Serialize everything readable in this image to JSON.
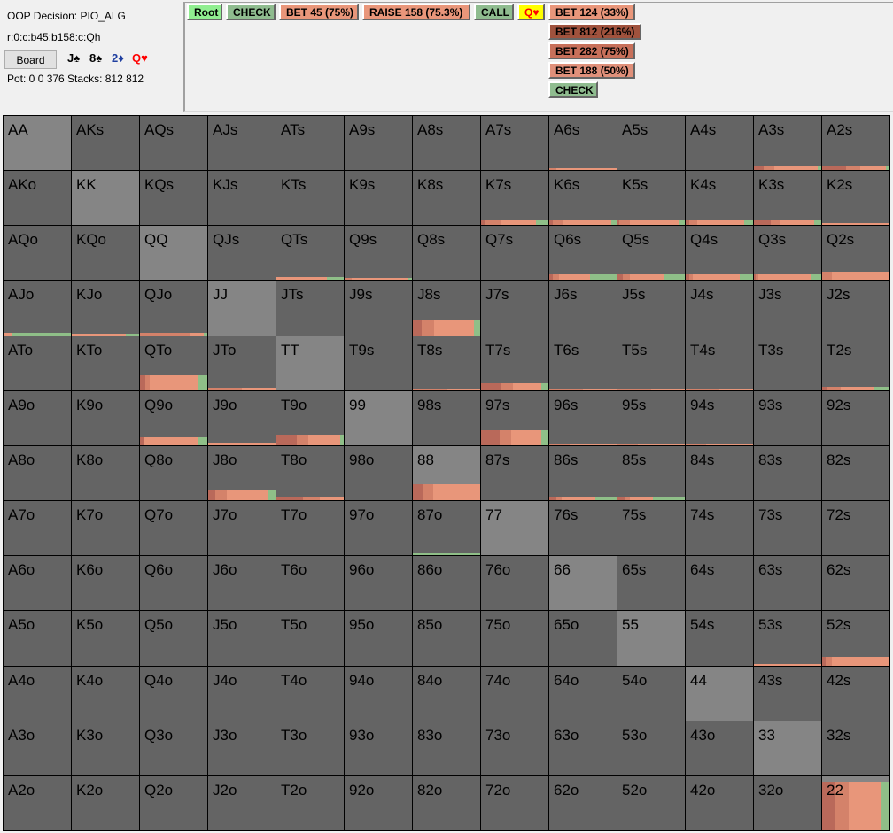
{
  "info": {
    "decision": "OOP Decision:  PIO_ALG",
    "line": "r:0:c:b45:b158:c:Qh",
    "board_button": "Board",
    "pot_stacks": "Pot: 0 0 376 Stacks: 812 812"
  },
  "board_cards": [
    {
      "text": "J♠",
      "color": "#000000"
    },
    {
      "text": "8♠",
      "color": "#000000"
    },
    {
      "text": "2♦",
      "color": "#1f3fa0"
    },
    {
      "text": "Q♥",
      "color": "#ff0000"
    }
  ],
  "nav": {
    "root": "Root",
    "check": "CHECK",
    "bet45": "BET 45 (75%)",
    "raise158": "RAISE 158 (75.3%)",
    "call": "CALL",
    "turn_card": "Q♥",
    "bet124": "BET 124 (33%)"
  },
  "actions": [
    {
      "label": "BET 812 (216%)",
      "color": "#a0523d"
    },
    {
      "label": "BET 282 (75%)",
      "color": "#c8705a"
    },
    {
      "label": "BET 188 (50%)",
      "color": "#e0907a"
    },
    {
      "label": "CHECK",
      "color": "#8fbc8f"
    }
  ],
  "colors": {
    "root": "#90ee90",
    "check": "#8fbc8f",
    "bet": "#e9967a",
    "turn_bg": "#ffff00",
    "seg_bet812": "#b9695a",
    "seg_bet282": "#d4826a",
    "seg_bet188": "#e8967a",
    "seg_check": "#8fbf88"
  },
  "hands": [
    [
      "AA",
      "AKs",
      "AQs",
      "AJs",
      "ATs",
      "A9s",
      "A8s",
      "A7s",
      "A6s",
      "A5s",
      "A4s",
      "A3s",
      "A2s"
    ],
    [
      "AKo",
      "KK",
      "KQs",
      "KJs",
      "KTs",
      "K9s",
      "K8s",
      "K7s",
      "K6s",
      "K5s",
      "K4s",
      "K3s",
      "K2s"
    ],
    [
      "AQo",
      "KQo",
      "QQ",
      "QJs",
      "QTs",
      "Q9s",
      "Q8s",
      "Q7s",
      "Q6s",
      "Q5s",
      "Q4s",
      "Q3s",
      "Q2s"
    ],
    [
      "AJo",
      "KJo",
      "QJo",
      "JJ",
      "JTs",
      "J9s",
      "J8s",
      "J7s",
      "J6s",
      "J5s",
      "J4s",
      "J3s",
      "J2s"
    ],
    [
      "ATo",
      "KTo",
      "QTo",
      "JTo",
      "TT",
      "T9s",
      "T8s",
      "T7s",
      "T6s",
      "T5s",
      "T4s",
      "T3s",
      "T2s"
    ],
    [
      "A9o",
      "K9o",
      "Q9o",
      "J9o",
      "T9o",
      "99",
      "98s",
      "97s",
      "96s",
      "95s",
      "94s",
      "93s",
      "92s"
    ],
    [
      "A8o",
      "K8o",
      "Q8o",
      "J8o",
      "T8o",
      "98o",
      "88",
      "87s",
      "86s",
      "85s",
      "84s",
      "83s",
      "82s"
    ],
    [
      "A7o",
      "K7o",
      "Q7o",
      "J7o",
      "T7o",
      "97o",
      "87o",
      "77",
      "76s",
      "75s",
      "74s",
      "73s",
      "72s"
    ],
    [
      "A6o",
      "K6o",
      "Q6o",
      "J6o",
      "T6o",
      "96o",
      "86o",
      "76o",
      "66",
      "65s",
      "64s",
      "63s",
      "62s"
    ],
    [
      "A5o",
      "K5o",
      "Q5o",
      "J5o",
      "T5o",
      "95o",
      "85o",
      "75o",
      "65o",
      "55",
      "54s",
      "53s",
      "52s"
    ],
    [
      "A4o",
      "K4o",
      "Q4o",
      "J4o",
      "T4o",
      "94o",
      "84o",
      "74o",
      "64o",
      "54o",
      "44",
      "43s",
      "42s"
    ],
    [
      "A3o",
      "K3o",
      "Q3o",
      "J3o",
      "T3o",
      "93o",
      "83o",
      "73o",
      "63o",
      "53o",
      "43o",
      "33",
      "32s"
    ],
    [
      "A2o",
      "K2o",
      "Q2o",
      "J2o",
      "T2o",
      "92o",
      "82o",
      "72o",
      "62o",
      "52o",
      "42o",
      "32o",
      "22"
    ]
  ],
  "frequencies": {
    "A6s": [
      0.03,
      0,
      0.1,
      0.9,
      0
    ],
    "A3s": [
      0.06,
      0.15,
      0.15,
      0.65,
      0.05
    ],
    "A2s": [
      0.09,
      0.35,
      0.22,
      0.38,
      0.05
    ],
    "K7s": [
      0.1,
      0.05,
      0.25,
      0.52,
      0.18
    ],
    "K6s": [
      0.1,
      0.05,
      0.15,
      0.72,
      0.08
    ],
    "K5s": [
      0.1,
      0.03,
      0.15,
      0.73,
      0.09
    ],
    "K4s": [
      0.1,
      0.05,
      0.12,
      0.7,
      0.13
    ],
    "K3s": [
      0.08,
      0.25,
      0.15,
      0.5,
      0.1
    ],
    "K2s": [
      0.03,
      0,
      0,
      1,
      0
    ],
    "QTs": [
      0.05,
      0,
      0,
      0.75,
      0.25
    ],
    "Q9s": [
      0.04,
      0,
      0.1,
      0.85,
      0.05
    ],
    "Q6s": [
      0.1,
      0.05,
      0.1,
      0.45,
      0.4
    ],
    "Q5s": [
      0.1,
      0.08,
      0.1,
      0.5,
      0.32
    ],
    "Q4s": [
      0.1,
      0.05,
      0.05,
      0.7,
      0.2
    ],
    "Q3s": [
      0.1,
      0.03,
      0.03,
      0.78,
      0.16
    ],
    "Q2s": [
      0.15,
      0,
      0.15,
      0.85,
      0
    ],
    "AJo": [
      0.05,
      0,
      0,
      0.12,
      0.88
    ],
    "KJo": [
      0.03,
      0,
      0,
      0.8,
      0.2
    ],
    "QJo": [
      0.05,
      0,
      0.75,
      0.2,
      0.05
    ],
    "J8s": [
      0.27,
      0.13,
      0.18,
      0.6,
      0.09
    ],
    "QTo": [
      0.27,
      0.08,
      0.07,
      0.72,
      0.13
    ],
    "JTo": [
      0.05,
      0,
      0.5,
      0.5,
      0
    ],
    "T8s": [
      0.03,
      0,
      0.5,
      0.5,
      0
    ],
    "T7s": [
      0.13,
      0.3,
      0.18,
      0.42,
      0.1
    ],
    "T6s": [
      0.03,
      0,
      0.5,
      0.5,
      0
    ],
    "T5s": [
      0.03,
      0,
      0.5,
      0.5,
      0
    ],
    "T4s": [
      0.03,
      0,
      0.5,
      0.5,
      0
    ],
    "T2s": [
      0.07,
      0.07,
      0.2,
      0.5,
      0.23
    ],
    "Q9o": [
      0.15,
      0.05,
      0,
      0.8,
      0.15
    ],
    "J9o": [
      0.03,
      0,
      0,
      1,
      0
    ],
    "T9o": [
      0.2,
      0.3,
      0.18,
      0.47,
      0.05
    ],
    "97s": [
      0.27,
      0.27,
      0.18,
      0.45,
      0.1
    ],
    "96s": [
      0.02,
      0,
      0.3,
      0.7,
      0
    ],
    "95s": [
      0.02,
      0,
      0.3,
      0.7,
      0
    ],
    "94s": [
      0.02,
      0,
      0.3,
      0.7,
      0
    ],
    "J8o": [
      0.2,
      0.1,
      0.17,
      0.63,
      0.1
    ],
    "T8o": [
      0.05,
      0.4,
      0.25,
      0.35,
      0
    ],
    "88": [
      0.3,
      0.15,
      0.15,
      0.7,
      0
    ],
    "86s": [
      0.07,
      0.1,
      0.08,
      0.5,
      0.32
    ],
    "85s": [
      0.07,
      0.1,
      0.08,
      0.35,
      0.47
    ],
    "87o": [
      0.03,
      0,
      0,
      0,
      1
    ],
    "53s": [
      0.03,
      0,
      0,
      1,
      0
    ],
    "52s": [
      0.15,
      0.05,
      0.1,
      0.85,
      0
    ],
    "22": [
      0.9,
      0.2,
      0.2,
      0.47,
      0.13
    ]
  }
}
